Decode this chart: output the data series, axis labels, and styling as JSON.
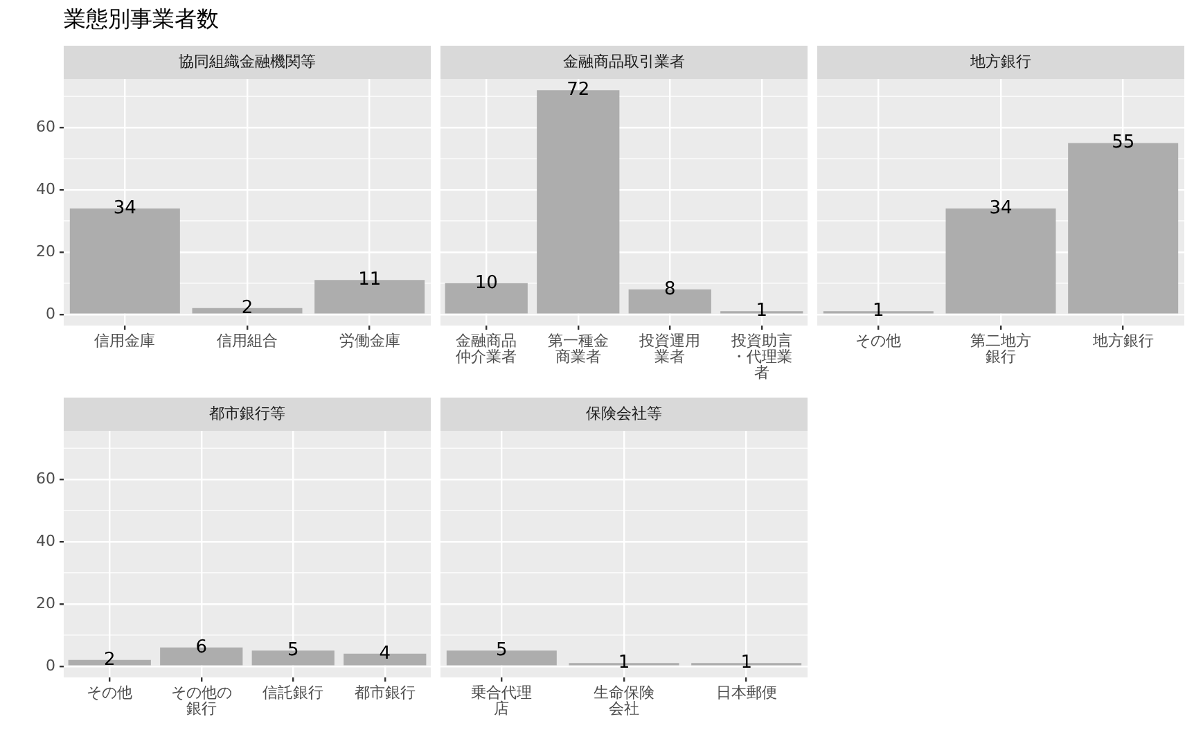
{
  "chart_data": [
    {
      "type": "bar",
      "title": "業態別事業者数",
      "subtitle": "協同組織金融機関等",
      "categories": [
        "信用金庫",
        "信用組合",
        "労働金庫"
      ],
      "values": [
        34,
        2,
        11
      ],
      "color": "#adadad",
      "ylim": [
        -3.6,
        75.6
      ],
      "yticks": [
        0,
        20,
        40,
        60
      ],
      "grid": true,
      "data_labels": true
    },
    {
      "type": "bar",
      "subtitle": "金融商品取引業者",
      "categories": [
        "金融商品仲介業者",
        "第一種金商業者",
        "投資運用業者",
        "投資助言・代理業者"
      ],
      "values": [
        10,
        72,
        8,
        1
      ],
      "color": "#adadad",
      "ylim": [
        -3.6,
        75.6
      ],
      "yticks": [
        0,
        20,
        40,
        60
      ],
      "grid": true,
      "data_labels": true,
      "tick_labels": "x"
    },
    {
      "type": "bar",
      "subtitle": "地方銀行",
      "categories": [
        "その他",
        "第二地方銀行",
        "地方銀行"
      ],
      "values": [
        1,
        34,
        55
      ],
      "color": "#adadad",
      "ylim": [
        -3.6,
        75.6
      ],
      "yticks": [
        0,
        20,
        40,
        60
      ],
      "grid": true,
      "data_labels": true,
      "tick_labels": "x"
    },
    {
      "type": "bar",
      "subtitle": "都市銀行等",
      "categories": [
        "その他",
        "その他の銀行",
        "信託銀行",
        "都市銀行"
      ],
      "values": [
        2,
        6,
        5,
        4
      ],
      "color": "#adadad",
      "ylim": [
        -3.6,
        75.6
      ],
      "yticks": [
        0,
        20,
        40,
        60
      ],
      "grid": true,
      "data_labels": true
    },
    {
      "type": "bar",
      "subtitle": "保険会社等",
      "categories": [
        "乗合代理店",
        "生命保険会社",
        "日本郵便"
      ],
      "values": [
        5,
        1,
        1
      ],
      "color": "#adadad",
      "ylim": [
        -3.6,
        75.6
      ],
      "yticks": [
        0,
        20,
        40,
        60
      ],
      "grid": true,
      "data_labels": true,
      "tick_labels": "x"
    }
  ]
}
